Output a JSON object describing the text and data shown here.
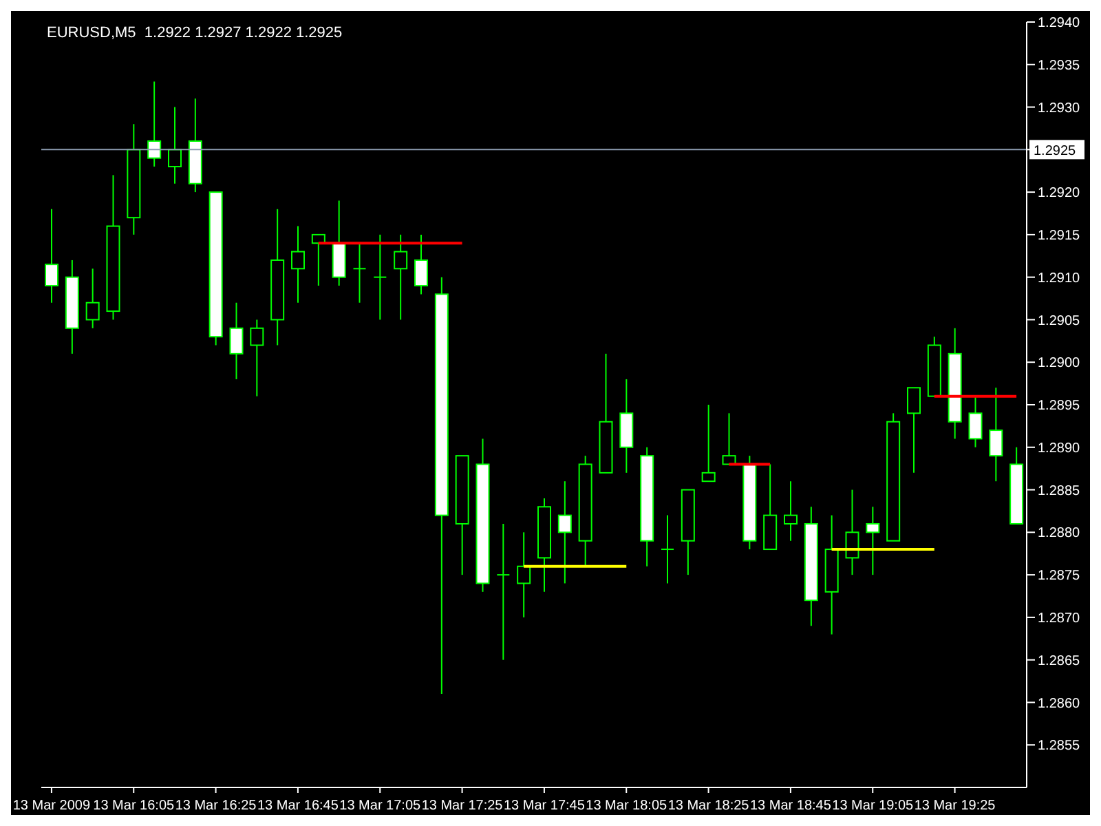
{
  "chart_data": {
    "type": "candlestick",
    "title": "EURUSD,M5  1.2922 1.2927 1.2922 1.2925",
    "color": "#00ff00",
    "categories": [
      "13 Mar 2009",
      null,
      null,
      null,
      "13 Mar 16:05",
      null,
      null,
      null,
      "13 Mar 16:25",
      null,
      null,
      null,
      "13 Mar 16:45",
      null,
      null,
      null,
      "13 Mar 17:05",
      null,
      null,
      null,
      "13 Mar 17:25",
      null,
      null,
      null,
      "13 Mar 17:45",
      null,
      null,
      null,
      "13 Mar 18:05",
      null,
      null,
      null,
      "13 Mar 18:25",
      null,
      null,
      null,
      "13 Mar 18:45",
      null,
      null,
      null,
      "13 Mar 19:05",
      null,
      null,
      null,
      "13 Mar 19:25",
      null,
      null,
      null
    ],
    "ohlc": [
      [
        1.29115,
        1.2918,
        1.2907,
        1.2909
      ],
      [
        1.291,
        1.2912,
        1.2901,
        1.2904
      ],
      [
        1.2905,
        1.2911,
        1.2904,
        1.2907
      ],
      [
        1.2906,
        1.2922,
        1.2905,
        1.2916
      ],
      [
        1.2917,
        1.2928,
        1.2915,
        1.2925
      ],
      [
        1.2926,
        1.2933,
        1.2923,
        1.2924
      ],
      [
        1.2923,
        1.293,
        1.2921,
        1.2925
      ],
      [
        1.2926,
        1.2931,
        1.292,
        1.2921
      ],
      [
        1.292,
        1.292,
        1.2902,
        1.2903
      ],
      [
        1.2904,
        1.2907,
        1.2898,
        1.2901
      ],
      [
        1.2902,
        1.2905,
        1.2896,
        1.2904
      ],
      [
        1.2905,
        1.2918,
        1.2902,
        1.2912
      ],
      [
        1.2911,
        1.2916,
        1.2907,
        1.2913
      ],
      [
        1.2914,
        1.2915,
        1.2909,
        1.2915
      ],
      [
        1.2914,
        1.2919,
        1.2909,
        1.291
      ],
      [
        1.2911,
        1.2914,
        1.2907,
        1.2911
      ],
      [
        1.291,
        1.2915,
        1.2905,
        1.291
      ],
      [
        1.2911,
        1.2915,
        1.2905,
        1.2913
      ],
      [
        1.2912,
        1.2915,
        1.2908,
        1.2909
      ],
      [
        1.2908,
        1.291,
        1.2861,
        1.2882
      ],
      [
        1.2881,
        1.2889,
        1.2875,
        1.2889
      ],
      [
        1.2888,
        1.2891,
        1.2873,
        1.2874
      ],
      [
        1.2875,
        1.2881,
        1.2865,
        1.2875
      ],
      [
        1.2874,
        1.288,
        1.287,
        1.2876
      ],
      [
        1.2877,
        1.2884,
        1.2873,
        1.2883
      ],
      [
        1.2882,
        1.2886,
        1.2874,
        1.288
      ],
      [
        1.2879,
        1.2889,
        1.2876,
        1.2888
      ],
      [
        1.2887,
        1.2901,
        1.2887,
        1.2893
      ],
      [
        1.2894,
        1.2898,
        1.2887,
        1.289
      ],
      [
        1.2889,
        1.289,
        1.2876,
        1.2879
      ],
      [
        1.2878,
        1.2882,
        1.2874,
        1.2878
      ],
      [
        1.2879,
        1.2885,
        1.2875,
        1.2885
      ],
      [
        1.2886,
        1.2895,
        1.2886,
        1.2887
      ],
      [
        1.2888,
        1.2894,
        1.2888,
        1.2889
      ],
      [
        1.2888,
        1.2889,
        1.2878,
        1.2879
      ],
      [
        1.2878,
        1.2888,
        1.2878,
        1.2882
      ],
      [
        1.2881,
        1.2886,
        1.2879,
        1.2882
      ],
      [
        1.2881,
        1.2883,
        1.2869,
        1.2872
      ],
      [
        1.2873,
        1.2882,
        1.2868,
        1.2878
      ],
      [
        1.2877,
        1.2885,
        1.2875,
        1.288
      ],
      [
        1.2881,
        1.2883,
        1.2875,
        1.288
      ],
      [
        1.2879,
        1.2894,
        1.2879,
        1.2893
      ],
      [
        1.2894,
        1.2897,
        1.2887,
        1.2897
      ],
      [
        1.2896,
        1.2903,
        1.2896,
        1.2902
      ],
      [
        1.2901,
        1.2904,
        1.2891,
        1.2893
      ],
      [
        1.2894,
        1.2896,
        1.289,
        1.2891
      ],
      [
        1.2892,
        1.2897,
        1.2886,
        1.2889
      ],
      [
        1.2888,
        1.289,
        1.2881,
        1.2881
      ]
    ],
    "series": [
      {
        "type": "line",
        "color": "#ff0000",
        "values": [
          null,
          null,
          null,
          null,
          null,
          null,
          null,
          null,
          null,
          null,
          null,
          null,
          null,
          1.2914,
          1.2914,
          1.2914,
          1.2914,
          1.2914,
          1.2914,
          1.2914,
          1.2914,
          null,
          null,
          null,
          null,
          null,
          null,
          null,
          null,
          null,
          null,
          null,
          null,
          null,
          null,
          null,
          null,
          null,
          null,
          null,
          null,
          null,
          null,
          null,
          null,
          null,
          null,
          null
        ]
      },
      {
        "type": "line",
        "color": "#ff0000",
        "values": [
          null,
          null,
          null,
          null,
          null,
          null,
          null,
          null,
          null,
          null,
          null,
          null,
          null,
          null,
          null,
          null,
          null,
          null,
          null,
          null,
          null,
          null,
          null,
          null,
          null,
          null,
          null,
          null,
          null,
          null,
          null,
          null,
          null,
          1.2888,
          1.2888,
          1.2888,
          null,
          null,
          null,
          null,
          null,
          null,
          null,
          null,
          null,
          null,
          null,
          null
        ]
      },
      {
        "type": "line",
        "color": "#ff0000",
        "values": [
          null,
          null,
          null,
          null,
          null,
          null,
          null,
          null,
          null,
          null,
          null,
          null,
          null,
          null,
          null,
          null,
          null,
          null,
          null,
          null,
          null,
          null,
          null,
          null,
          null,
          null,
          null,
          null,
          null,
          null,
          null,
          null,
          null,
          null,
          null,
          null,
          null,
          null,
          null,
          null,
          null,
          null,
          null,
          1.2896,
          1.2896,
          1.2896,
          1.2896,
          1.2896
        ]
      },
      {
        "type": "line",
        "color": "#ffff00",
        "values": [
          null,
          null,
          null,
          null,
          null,
          null,
          null,
          null,
          null,
          null,
          null,
          null,
          null,
          null,
          null,
          null,
          null,
          null,
          null,
          null,
          null,
          null,
          null,
          1.2876,
          1.2876,
          1.2876,
          1.2876,
          1.2876,
          1.2876,
          null,
          null,
          null,
          null,
          null,
          null,
          null,
          null,
          null,
          null,
          null,
          null,
          null,
          null,
          null,
          null,
          null,
          null,
          null
        ]
      },
      {
        "type": "line",
        "color": "#ffff00",
        "values": [
          null,
          null,
          null,
          null,
          null,
          null,
          null,
          null,
          null,
          null,
          null,
          null,
          null,
          null,
          null,
          null,
          null,
          null,
          null,
          null,
          null,
          null,
          null,
          null,
          null,
          null,
          null,
          null,
          null,
          null,
          null,
          null,
          null,
          null,
          null,
          null,
          null,
          null,
          1.2878,
          1.2878,
          1.2878,
          1.2878,
          1.2878,
          1.2878,
          null,
          null,
          null,
          null
        ]
      }
    ],
    "ylim": [
      1.285,
      1.294
    ],
    "yticks": [
      {
        "value": 1.2855,
        "label": "1.2855"
      },
      {
        "value": 1.286,
        "label": "1.2860"
      },
      {
        "value": 1.2865,
        "label": "1.2865"
      },
      {
        "value": 1.287,
        "label": "1.2870"
      },
      {
        "value": 1.2875,
        "label": "1.2875"
      },
      {
        "value": 1.288,
        "label": "1.2880"
      },
      {
        "value": 1.2885,
        "label": "1.2885"
      },
      {
        "value": 1.289,
        "label": "1.2890"
      },
      {
        "value": 1.2895,
        "label": "1.2895"
      },
      {
        "value": 1.29,
        "label": "1.2900"
      },
      {
        "value": 1.2905,
        "label": "1.2905"
      },
      {
        "value": 1.291,
        "label": "1.2910"
      },
      {
        "value": 1.2915,
        "label": "1.2915"
      },
      {
        "value": 1.292,
        "label": "1.2920"
      },
      {
        "value": 1.2925,
        "label": null
      },
      {
        "value": 1.293,
        "label": "1.2930"
      },
      {
        "value": 1.2935,
        "label": "1.2935"
      },
      {
        "value": 1.294,
        "label": "1.2940"
      }
    ],
    "ref_lines": [
      {
        "axis": "y",
        "value": 1.2925,
        "label": "1.2925",
        "color": "#8c9bb0"
      }
    ],
    "grid": false,
    "legend": false
  }
}
